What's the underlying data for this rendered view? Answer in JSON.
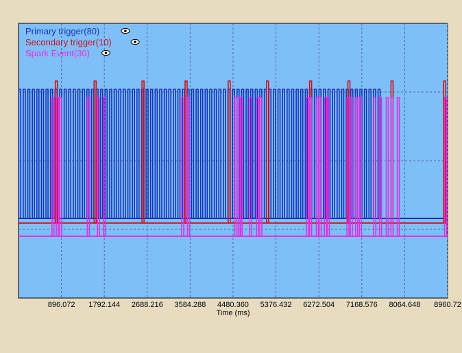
{
  "chart_data": {
    "type": "line",
    "xlabel": "Time (ms)",
    "ylabel": "",
    "x_ticks": [
      "896.072",
      "1792.144",
      "2688.216",
      "3584.288",
      "4480.360",
      "5376.432",
      "6272.504",
      "7168.576",
      "8064.648",
      "8960.72"
    ],
    "xlim": [
      0,
      8960.72
    ],
    "grid": true,
    "legend_placement": "top-left",
    "colors": {
      "plot_bg": "#7fbff8",
      "page_bg": "#e8dcc0",
      "grid": "#4a6a9a"
    },
    "series": [
      {
        "name": "Primary trigger(80)",
        "color": "#1432b4",
        "base": 0.29,
        "high": 0.76,
        "pulses": [
          25,
          120,
          215,
          310,
          405,
          500,
          595,
          690,
          785,
          880,
          975,
          1070,
          1165,
          1260,
          1355,
          1450,
          1545,
          1640,
          1735,
          1830,
          1925,
          2020,
          2115,
          2210,
          2305,
          2400,
          2495,
          2590,
          2685,
          2780,
          2875,
          2970,
          3065,
          3160,
          3255,
          3350,
          3445,
          3540,
          3635,
          3730,
          3825,
          3920,
          4015,
          4110,
          4205,
          4300,
          4395,
          4490,
          4585,
          4680,
          4775,
          4870,
          4965,
          5060,
          5155,
          5250,
          5345,
          5440,
          5535,
          5630,
          5725,
          5820,
          5915,
          6010,
          6105,
          6200,
          6295,
          6390,
          6485,
          6580,
          6675,
          6770,
          6865,
          6960,
          7055,
          7150,
          7245,
          7340,
          7435,
          7530
        ]
      },
      {
        "name": "Secondary trigger(10)",
        "color": "#cc1020",
        "base": 0.273,
        "high": 0.79,
        "pulses": [
          790,
          1600,
          2600,
          3500,
          4400,
          5200,
          6100,
          6900,
          7800,
          8900
        ]
      },
      {
        "name": "Spark Event(30)",
        "color": "#e030e0",
        "base": 0.225,
        "high": 0.73,
        "pulses": [
          720,
          810,
          880,
          1460,
          1670,
          1800,
          3430,
          3550,
          4540,
          4620,
          4650,
          4850,
          4990,
          5060,
          6030,
          6100,
          6240,
          6300,
          6410,
          6470,
          6880,
          6950,
          7060,
          7140,
          7440,
          7560,
          7700,
          7800,
          7930,
          8920
        ]
      }
    ]
  }
}
